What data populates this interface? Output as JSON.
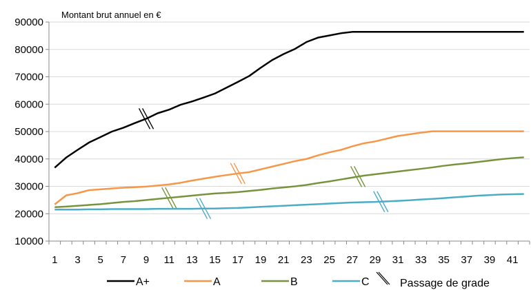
{
  "chart_data": {
    "type": "line",
    "unit_label": "Montant brut annuel en €",
    "ylim": [
      10000,
      90000
    ],
    "y_ticks": [
      10000,
      20000,
      30000,
      40000,
      50000,
      60000,
      70000,
      80000,
      90000
    ],
    "x": [
      1,
      2,
      3,
      4,
      5,
      6,
      7,
      8,
      9,
      10,
      11,
      12,
      13,
      14,
      15,
      16,
      17,
      18,
      19,
      20,
      21,
      22,
      23,
      24,
      25,
      26,
      27,
      28,
      29,
      30,
      31,
      32,
      33,
      34,
      35,
      36,
      37,
      38,
      39,
      40,
      41,
      42
    ],
    "x_tick_labels": [
      1,
      3,
      5,
      7,
      9,
      11,
      13,
      15,
      17,
      19,
      21,
      23,
      25,
      27,
      29,
      31,
      33,
      35,
      37,
      39,
      41
    ],
    "grid": "horizontal",
    "legend_position": "bottom",
    "series": [
      {
        "name": "A+",
        "color": "#000000",
        "values": [
          36800,
          40500,
          43300,
          46000,
          48000,
          50000,
          51400,
          53100,
          54700,
          56700,
          58000,
          59800,
          61000,
          62400,
          63900,
          66000,
          68100,
          70300,
          73300,
          76100,
          78300,
          80200,
          82700,
          84300,
          85100,
          85900,
          86400,
          86400,
          86400,
          86400,
          86400,
          86400,
          86400,
          86400,
          86400,
          86400,
          86400,
          86400,
          86400,
          86400,
          86400,
          86400
        ]
      },
      {
        "name": "A",
        "color": "#F79646",
        "values": [
          23400,
          26700,
          27500,
          28600,
          28900,
          29200,
          29500,
          29700,
          29900,
          30300,
          30700,
          31300,
          32100,
          32800,
          33500,
          34100,
          34700,
          35200,
          36200,
          37200,
          38200,
          39200,
          40000,
          41300,
          42400,
          43300,
          44600,
          45700,
          46400,
          47400,
          48400,
          49000,
          49600,
          50100,
          50100,
          50100,
          50100,
          50100,
          50100,
          50100,
          50100,
          50100
        ]
      },
      {
        "name": "B",
        "color": "#77933C",
        "values": [
          22400,
          22600,
          22900,
          23200,
          23500,
          23900,
          24300,
          24600,
          25000,
          25400,
          25800,
          26200,
          26600,
          27000,
          27400,
          27600,
          27900,
          28300,
          28700,
          29200,
          29600,
          30000,
          30500,
          31200,
          31800,
          32500,
          33200,
          33900,
          34400,
          34900,
          35400,
          35900,
          36400,
          36900,
          37500,
          38000,
          38400,
          38900,
          39400,
          39900,
          40300,
          40600
        ]
      },
      {
        "name": "C",
        "color": "#4BACC6",
        "values": [
          21500,
          21500,
          21500,
          21600,
          21600,
          21700,
          21700,
          21700,
          21700,
          21800,
          21800,
          21800,
          21800,
          21900,
          21900,
          22000,
          22100,
          22300,
          22500,
          22700,
          22900,
          23100,
          23300,
          23500,
          23700,
          23900,
          24100,
          24200,
          24300,
          24500,
          24700,
          24900,
          25200,
          25400,
          25700,
          26000,
          26300,
          26600,
          26800,
          27000,
          27100,
          27200
        ]
      }
    ],
    "grade_change_markers": [
      {
        "series": "A+",
        "x": 9,
        "color": "#000000"
      },
      {
        "series": "A",
        "x": 17,
        "color": "#F79646"
      },
      {
        "series": "B",
        "x": 11,
        "color": "#77933C"
      },
      {
        "series": "B",
        "x": 27.5,
        "color": "#77933C"
      },
      {
        "series": "C",
        "x": 14,
        "color": "#4BACC6"
      },
      {
        "series": "C",
        "x": 29.5,
        "color": "#4BACC6"
      }
    ],
    "legend_items": [
      {
        "label": "A+",
        "color": "#000000",
        "type": "line"
      },
      {
        "label": "A",
        "color": "#F79646",
        "type": "line"
      },
      {
        "label": "B",
        "color": "#77933C",
        "type": "line"
      },
      {
        "label": "C",
        "color": "#4BACC6",
        "type": "line"
      },
      {
        "label": "Passage de grade",
        "color": "#000000",
        "type": "marker"
      }
    ]
  }
}
